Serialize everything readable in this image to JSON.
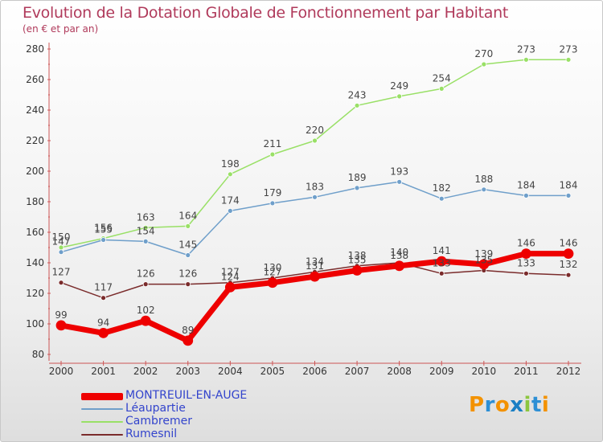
{
  "header": {
    "title": "Evolution de la Dotation Globale de Fonctionnement par Habitant",
    "subtitle": "(en € et par an)"
  },
  "logo": {
    "text": "Proxiti"
  },
  "colors": {
    "MONTREUIL-EN-AUGE": "#ee0000",
    "Léaupartie": "#6f9fca",
    "Cambremer": "#99e066",
    "Rumesnil": "#7a2b2b",
    "title": "#b03a5b",
    "legend_text": "#3344cc"
  },
  "chart_data": {
    "type": "line",
    "title": "Evolution de la Dotation Globale de Fonctionnement par Habitant",
    "subtitle": "(en € et par an)",
    "xlabel": "",
    "ylabel": "",
    "x": [
      "2000",
      "2001",
      "2002",
      "2003",
      "2004",
      "2005",
      "2006",
      "2007",
      "2008",
      "2009",
      "2010",
      "2011",
      "2012"
    ],
    "ylim": [
      80,
      280
    ],
    "yticks": [
      80,
      100,
      120,
      140,
      160,
      180,
      200,
      220,
      240,
      260,
      280
    ],
    "grid": false,
    "legend_position": "bottom-left",
    "series": [
      {
        "name": "MONTREUIL-EN-AUGE",
        "values": [
          99,
          94,
          102,
          89,
          124,
          127,
          131,
          135,
          138,
          141,
          139,
          146,
          146
        ],
        "labels": [
          "99",
          "94",
          "102",
          "89",
          "124",
          "127",
          "131",
          "135",
          "138",
          "141",
          "139",
          "146",
          "146"
        ]
      },
      {
        "name": "Léaupartie",
        "values": [
          147,
          155,
          154,
          145,
          174,
          179,
          183,
          189,
          193,
          182,
          188,
          184,
          184
        ],
        "labels": [
          "147",
          "155",
          "154",
          "145",
          "174",
          "179",
          "183",
          "189",
          "193",
          "182",
          "188",
          "184",
          "184"
        ]
      },
      {
        "name": "Cambremer",
        "values": [
          150,
          156,
          163,
          164,
          198,
          211,
          220,
          243,
          249,
          254,
          270,
          273,
          273
        ],
        "labels": [
          "150",
          "156",
          "163",
          "164",
          "198",
          "211",
          "220",
          "243",
          "249",
          "254",
          "270",
          "273",
          "273"
        ]
      },
      {
        "name": "Rumesnil",
        "values": [
          127,
          117,
          126,
          126,
          127,
          130,
          134,
          138,
          140,
          133,
          135,
          133,
          132
        ],
        "labels": [
          "127",
          "117",
          "126",
          "126",
          "127",
          "130",
          "134",
          "138",
          "140",
          "133",
          "135",
          "133",
          "132"
        ]
      }
    ]
  }
}
